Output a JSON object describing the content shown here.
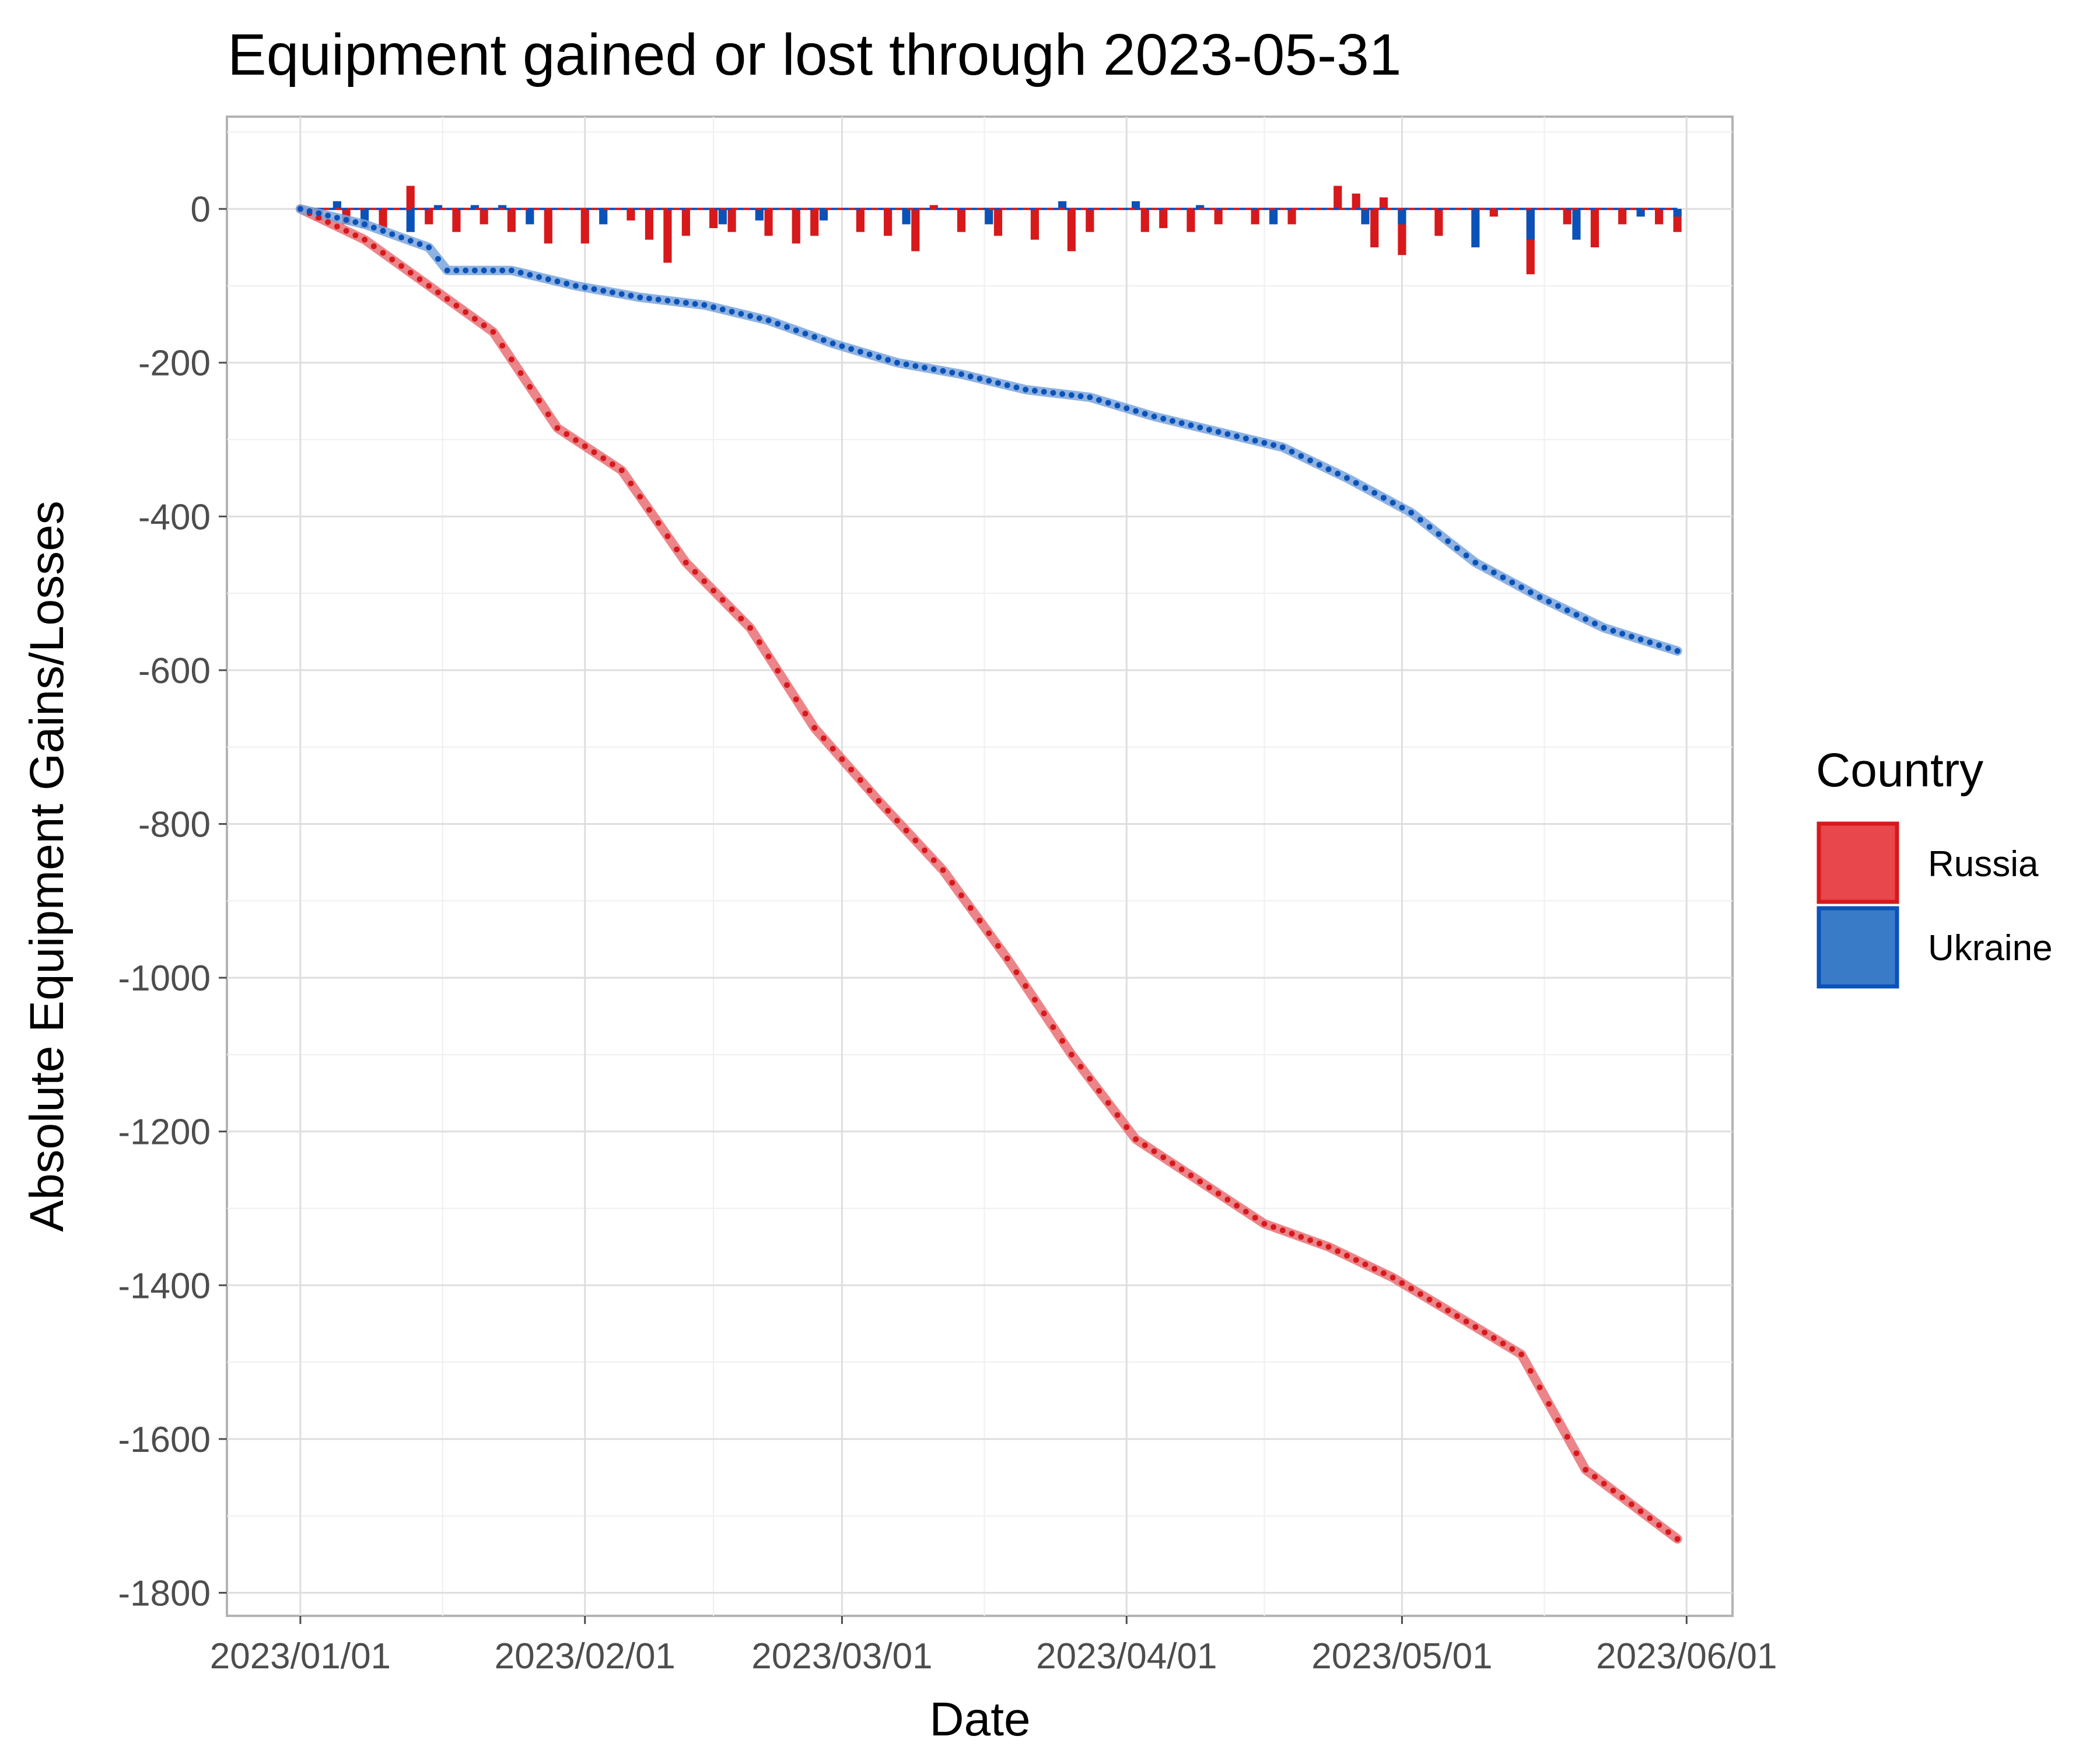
{
  "chart_data": {
    "type": "line",
    "title": "Equipment gained or lost through 2023-05-31",
    "xlabel": "Date",
    "ylabel": "Absolute Equipment Gains/Losses",
    "x_range": [
      "2022-12-24",
      "2023-06-06"
    ],
    "ylim": [
      -1830,
      120
    ],
    "x_ticks": [
      "2023/01/01",
      "2023/02/01",
      "2023/03/01",
      "2023/04/01",
      "2023/05/01",
      "2023/06/01"
    ],
    "y_ticks": [
      0,
      -200,
      -400,
      -600,
      -800,
      -1000,
      -1200,
      -1400,
      -1600,
      -1800
    ],
    "grid": true,
    "legend": {
      "title": "Country",
      "position": "right",
      "entries": [
        {
          "label": "Russia",
          "fill": "#e8474c",
          "border": "#d7191c"
        },
        {
          "label": "Ukraine",
          "fill": "#3a7bc8",
          "border": "#0a52b8"
        }
      ]
    },
    "series": [
      {
        "name": "Russia",
        "point_color": "#d7191c",
        "smooth_color": "#e87074",
        "cumulative": [
          {
            "x": "2023-01-01",
            "y": 0
          },
          {
            "x": "2023-01-08",
            "y": -40
          },
          {
            "x": "2023-01-15",
            "y": -100
          },
          {
            "x": "2023-01-22",
            "y": -160
          },
          {
            "x": "2023-01-29",
            "y": -285
          },
          {
            "x": "2023-02-05",
            "y": -340
          },
          {
            "x": "2023-02-12",
            "y": -460
          },
          {
            "x": "2023-02-19",
            "y": -545
          },
          {
            "x": "2023-02-26",
            "y": -675
          },
          {
            "x": "2023-03-05",
            "y": -770
          },
          {
            "x": "2023-03-12",
            "y": -860
          },
          {
            "x": "2023-03-19",
            "y": -975
          },
          {
            "x": "2023-03-26",
            "y": -1100
          },
          {
            "x": "2023-04-02",
            "y": -1210
          },
          {
            "x": "2023-04-09",
            "y": -1265
          },
          {
            "x": "2023-04-16",
            "y": -1320
          },
          {
            "x": "2023-04-23",
            "y": -1350
          },
          {
            "x": "2023-04-30",
            "y": -1390
          },
          {
            "x": "2023-05-07",
            "y": -1440
          },
          {
            "x": "2023-05-14",
            "y": -1490
          },
          {
            "x": "2023-05-21",
            "y": -1640
          },
          {
            "x": "2023-05-31",
            "y": -1730
          }
        ],
        "daily": [
          {
            "x": "2023-01-03",
            "y": -15
          },
          {
            "x": "2023-01-06",
            "y": -20
          },
          {
            "x": "2023-01-10",
            "y": -25
          },
          {
            "x": "2023-01-13",
            "y": 30
          },
          {
            "x": "2023-01-15",
            "y": -20
          },
          {
            "x": "2023-01-18",
            "y": -30
          },
          {
            "x": "2023-01-21",
            "y": -20
          },
          {
            "x": "2023-01-24",
            "y": -30
          },
          {
            "x": "2023-01-28",
            "y": -45
          },
          {
            "x": "2023-02-01",
            "y": -45
          },
          {
            "x": "2023-02-06",
            "y": -15
          },
          {
            "x": "2023-02-08",
            "y": -40
          },
          {
            "x": "2023-02-10",
            "y": -70
          },
          {
            "x": "2023-02-12",
            "y": -35
          },
          {
            "x": "2023-02-15",
            "y": -25
          },
          {
            "x": "2023-02-17",
            "y": -30
          },
          {
            "x": "2023-02-21",
            "y": -35
          },
          {
            "x": "2023-02-24",
            "y": -45
          },
          {
            "x": "2023-02-26",
            "y": -35
          },
          {
            "x": "2023-03-03",
            "y": -30
          },
          {
            "x": "2023-03-06",
            "y": -35
          },
          {
            "x": "2023-03-09",
            "y": -55
          },
          {
            "x": "2023-03-11",
            "y": 5
          },
          {
            "x": "2023-03-14",
            "y": -30
          },
          {
            "x": "2023-03-18",
            "y": -35
          },
          {
            "x": "2023-03-22",
            "y": -40
          },
          {
            "x": "2023-03-26",
            "y": -55
          },
          {
            "x": "2023-03-28",
            "y": -30
          },
          {
            "x": "2023-04-03",
            "y": -30
          },
          {
            "x": "2023-04-05",
            "y": -25
          },
          {
            "x": "2023-04-08",
            "y": -30
          },
          {
            "x": "2023-04-11",
            "y": -20
          },
          {
            "x": "2023-04-15",
            "y": -20
          },
          {
            "x": "2023-04-19",
            "y": -20
          },
          {
            "x": "2023-04-24",
            "y": 30
          },
          {
            "x": "2023-04-26",
            "y": 20
          },
          {
            "x": "2023-04-28",
            "y": -50
          },
          {
            "x": "2023-04-29",
            "y": 15
          },
          {
            "x": "2023-05-01",
            "y": -60
          },
          {
            "x": "2023-05-05",
            "y": -35
          },
          {
            "x": "2023-05-11",
            "y": -10
          },
          {
            "x": "2023-05-15",
            "y": -85
          },
          {
            "x": "2023-05-19",
            "y": -20
          },
          {
            "x": "2023-05-22",
            "y": -50
          },
          {
            "x": "2023-05-25",
            "y": -20
          },
          {
            "x": "2023-05-29",
            "y": -20
          },
          {
            "x": "2023-05-31",
            "y": -30
          }
        ]
      },
      {
        "name": "Ukraine",
        "point_color": "#0a52b8",
        "smooth_color": "#7aa5dc",
        "cumulative": [
          {
            "x": "2023-01-01",
            "y": 0
          },
          {
            "x": "2023-01-08",
            "y": -20
          },
          {
            "x": "2023-01-15",
            "y": -50
          },
          {
            "x": "2023-01-17",
            "y": -80
          },
          {
            "x": "2023-01-24",
            "y": -80
          },
          {
            "x": "2023-01-31",
            "y": -100
          },
          {
            "x": "2023-02-07",
            "y": -115
          },
          {
            "x": "2023-02-14",
            "y": -125
          },
          {
            "x": "2023-02-21",
            "y": -145
          },
          {
            "x": "2023-02-28",
            "y": -175
          },
          {
            "x": "2023-03-07",
            "y": -200
          },
          {
            "x": "2023-03-14",
            "y": -215
          },
          {
            "x": "2023-03-21",
            "y": -235
          },
          {
            "x": "2023-03-28",
            "y": -245
          },
          {
            "x": "2023-04-04",
            "y": -270
          },
          {
            "x": "2023-04-11",
            "y": -290
          },
          {
            "x": "2023-04-18",
            "y": -310
          },
          {
            "x": "2023-04-25",
            "y": -350
          },
          {
            "x": "2023-05-02",
            "y": -395
          },
          {
            "x": "2023-05-09",
            "y": -460
          },
          {
            "x": "2023-05-16",
            "y": -505
          },
          {
            "x": "2023-05-23",
            "y": -545
          },
          {
            "x": "2023-05-31",
            "y": -575
          }
        ],
        "daily": [
          {
            "x": "2023-01-05",
            "y": 10
          },
          {
            "x": "2023-01-08",
            "y": -25
          },
          {
            "x": "2023-01-13",
            "y": -30
          },
          {
            "x": "2023-01-16",
            "y": 5
          },
          {
            "x": "2023-01-20",
            "y": 5
          },
          {
            "x": "2023-01-23",
            "y": 5
          },
          {
            "x": "2023-01-26",
            "y": -20
          },
          {
            "x": "2023-02-03",
            "y": -20
          },
          {
            "x": "2023-02-16",
            "y": -20
          },
          {
            "x": "2023-02-20",
            "y": -15
          },
          {
            "x": "2023-02-27",
            "y": -15
          },
          {
            "x": "2023-03-08",
            "y": -20
          },
          {
            "x": "2023-03-17",
            "y": -20
          },
          {
            "x": "2023-03-25",
            "y": 10
          },
          {
            "x": "2023-04-02",
            "y": 10
          },
          {
            "x": "2023-04-09",
            "y": 5
          },
          {
            "x": "2023-04-17",
            "y": -20
          },
          {
            "x": "2023-04-27",
            "y": -20
          },
          {
            "x": "2023-05-01",
            "y": -20
          },
          {
            "x": "2023-05-09",
            "y": -50
          },
          {
            "x": "2023-05-15",
            "y": -40
          },
          {
            "x": "2023-05-20",
            "y": -40
          },
          {
            "x": "2023-05-27",
            "y": -10
          },
          {
            "x": "2023-05-31",
            "y": -10
          }
        ]
      }
    ]
  }
}
